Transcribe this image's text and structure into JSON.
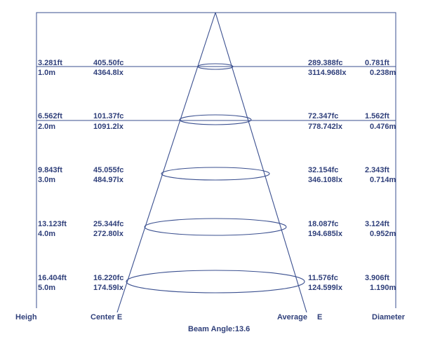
{
  "beam_angle_label": "Beam Angle:13.6",
  "footer": {
    "height": "Heigh",
    "center": "Center E",
    "average": "Average",
    "average_e": "E",
    "diameter": "Diameter"
  },
  "rows": [
    {
      "height_ft": "3.281ft",
      "height_m": "1.0m",
      "center_fc": "405.50fc",
      "center_lx": "4364.8lx",
      "avg_fc": "289.388fc",
      "avg_lx": "3114.968lx",
      "dia_ft": "0.781ft",
      "dia_m": "0.238m"
    },
    {
      "height_ft": "6.562ft",
      "height_m": "2.0m",
      "center_fc": "101.37fc",
      "center_lx": "1091.2lx",
      "avg_fc": "72.347fc",
      "avg_lx": "778.742lx",
      "dia_ft": "1.562ft",
      "dia_m": "0.476m"
    },
    {
      "height_ft": "9.843ft",
      "height_m": "3.0m",
      "center_fc": "45.055fc",
      "center_lx": "484.97lx",
      "avg_fc": "32.154fc",
      "avg_lx": "346.108lx",
      "dia_ft": "2.343ft",
      "dia_m": "0.714m"
    },
    {
      "height_ft": "13.123ft",
      "height_m": "4.0m",
      "center_fc": "25.344fc",
      "center_lx": "272.80lx",
      "avg_fc": "18.087fc",
      "avg_lx": "194.685lx",
      "dia_ft": "3.124ft",
      "dia_m": "0.952m"
    },
    {
      "height_ft": "16.404ft",
      "height_m": "5.0m",
      "center_fc": "16.220fc",
      "center_lx": "174.59lx",
      "avg_fc": "11.576fc",
      "avg_lx": "124.599lx",
      "dia_ft": "3.906ft",
      "dia_m": "1.190m"
    }
  ]
}
